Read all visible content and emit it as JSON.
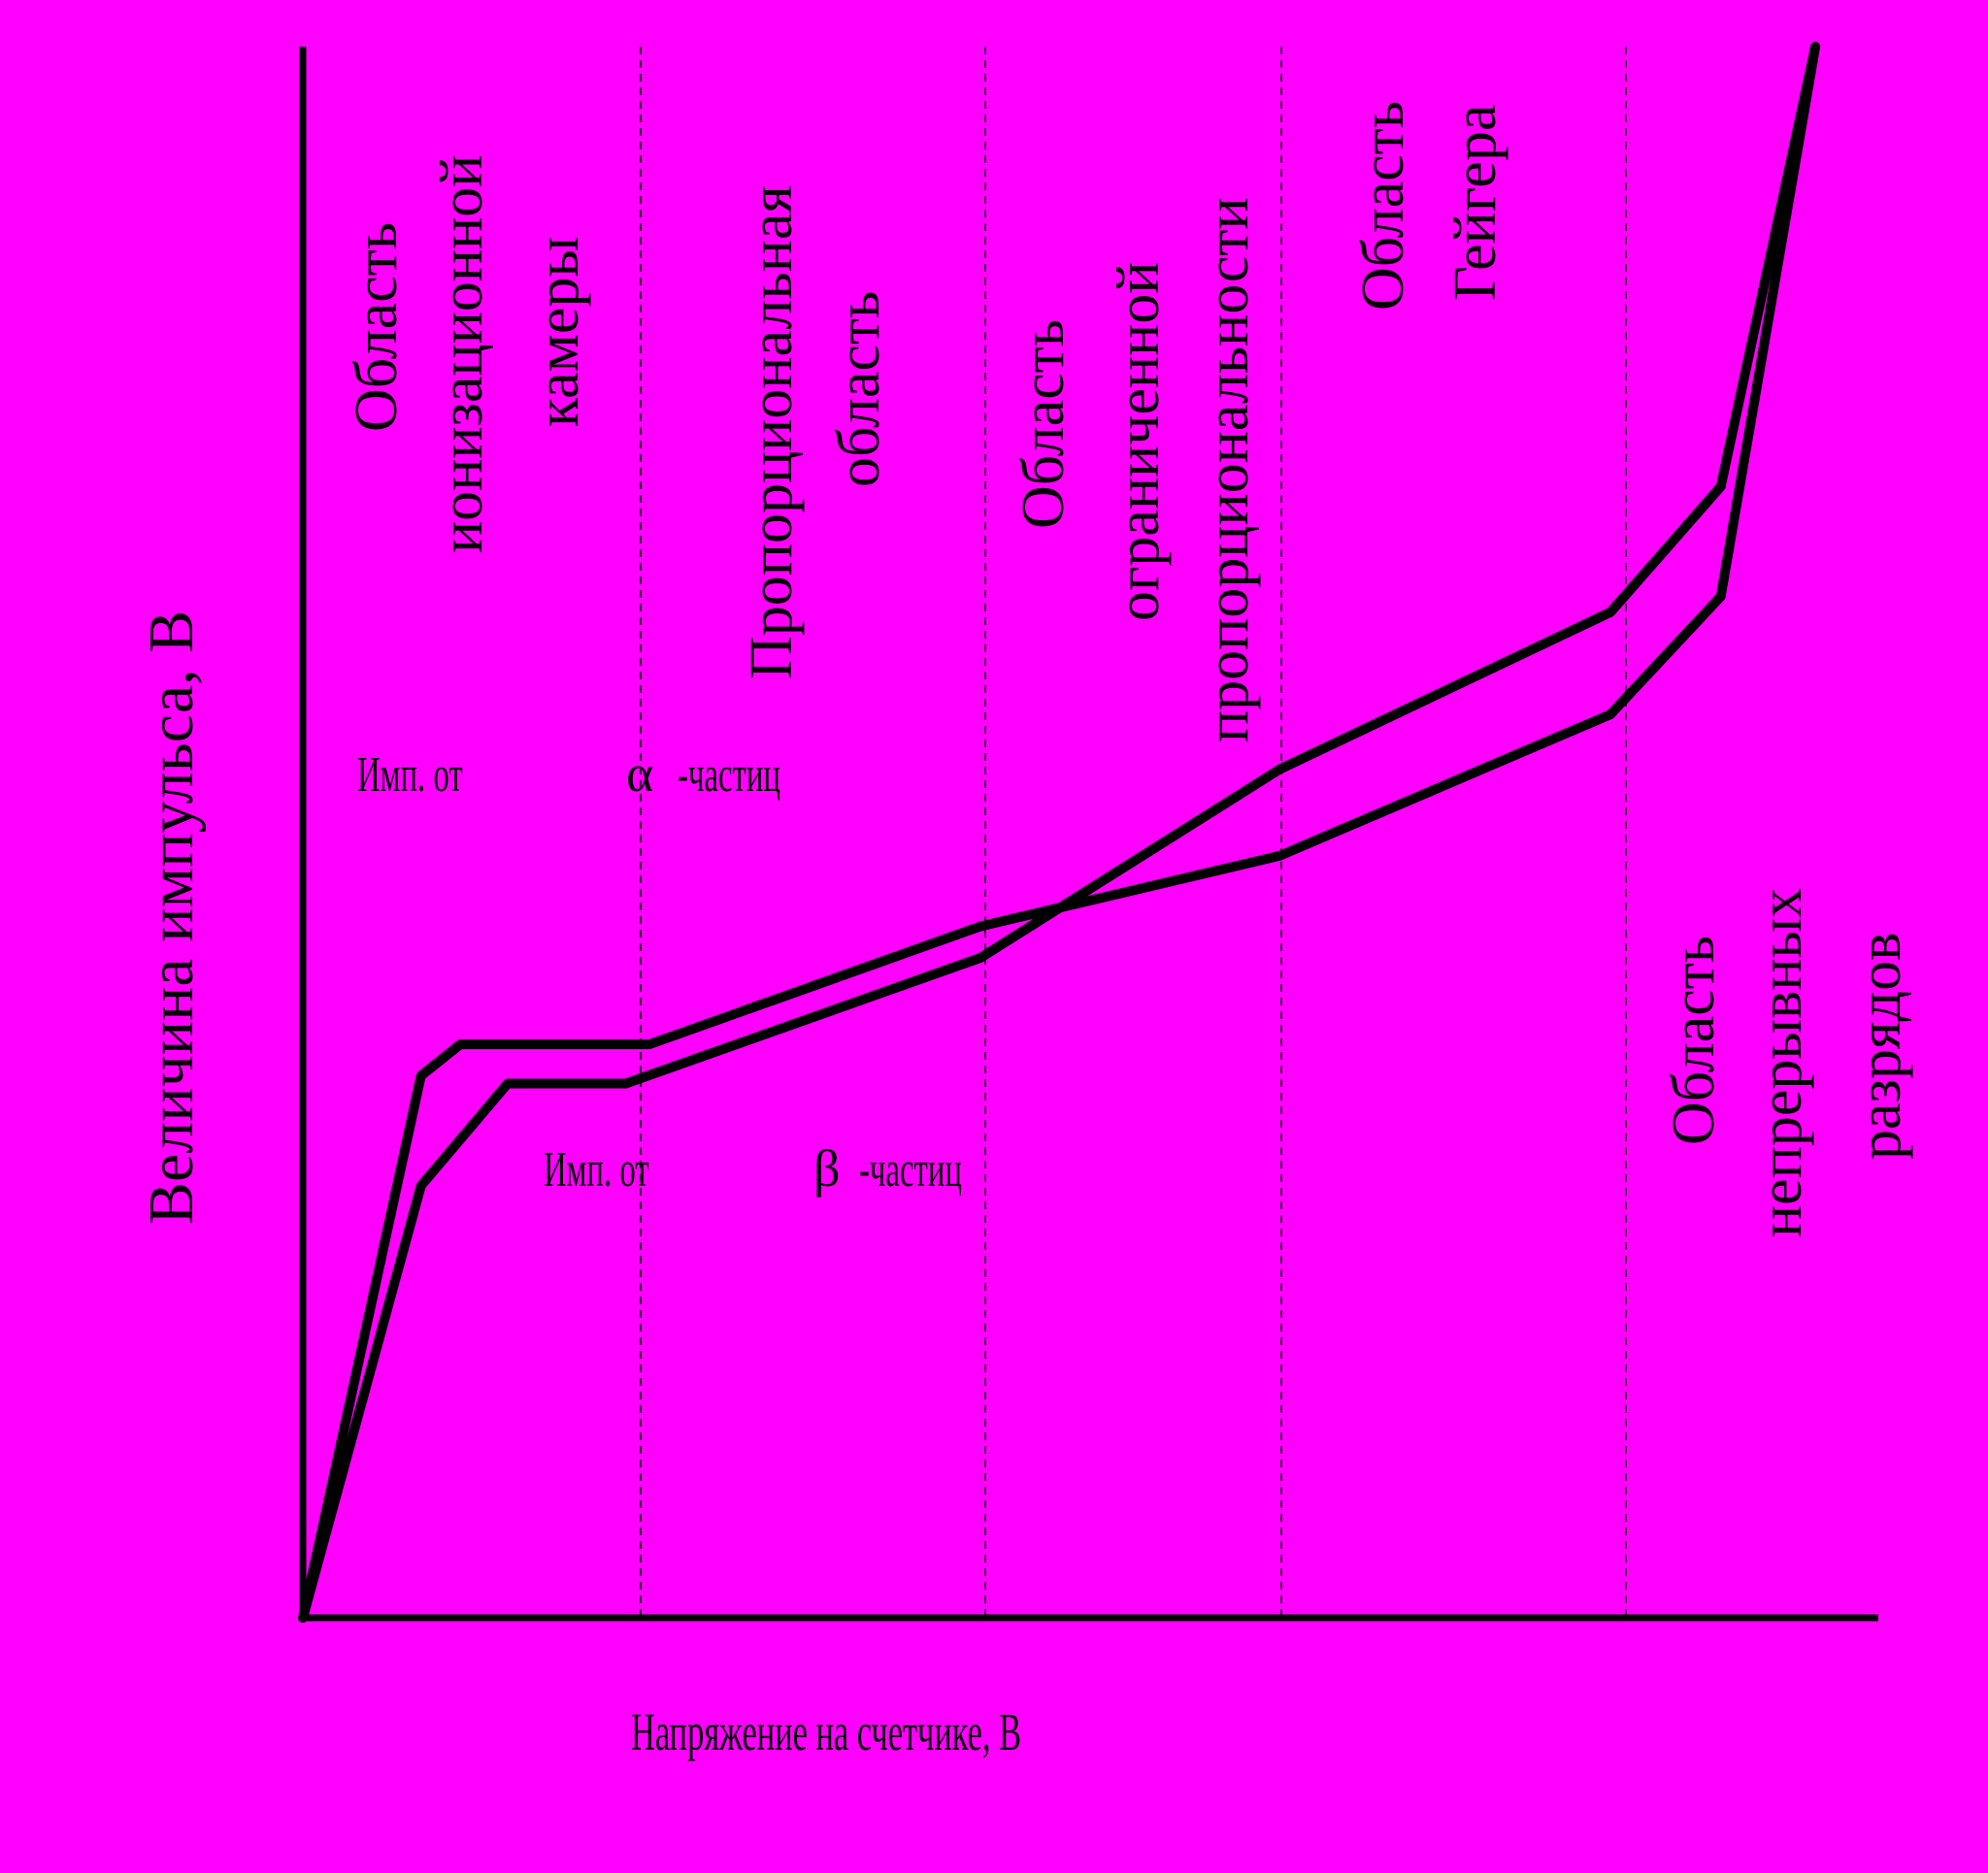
{
  "background_color": "#ff00ff",
  "foreground_color": "#000000",
  "chart_data": {
    "type": "line",
    "title": "",
    "xlabel": "Напряжение на счетчике, В",
    "ylabel": "Величина импульса, В",
    "grid": false,
    "x_ticks": false,
    "y_ticks": false,
    "regions": [
      {
        "lines": [
          "Область",
          "ионизационной",
          "камеры"
        ]
      },
      {
        "lines": [
          "Пропорциональная",
          "область"
        ]
      },
      {
        "lines": [
          "Область",
          "ограниченной",
          "пропорциональности"
        ]
      },
      {
        "lines": [
          "Область",
          "Гейгера"
        ]
      },
      {
        "lines": [
          "Область",
          "непрерывных",
          "разрядов"
        ]
      }
    ],
    "series": [
      {
        "label_prefix": "Имп. от",
        "symbol": "α",
        "label_suffix": "-частиц",
        "points": [
          [
            0,
            0
          ],
          [
            7.5,
            34.5
          ],
          [
            10,
            36.5
          ],
          [
            22,
            36.5
          ],
          [
            43,
            44
          ],
          [
            62,
            48.5
          ],
          [
            83,
            57.5
          ],
          [
            90,
            65
          ],
          [
            96,
            100
          ]
        ]
      },
      {
        "label_prefix": "Имп. от",
        "symbol": "β",
        "label_suffix": "-частиц",
        "points": [
          [
            0,
            0
          ],
          [
            7.5,
            27.5
          ],
          [
            13,
            34
          ],
          [
            20.5,
            34
          ],
          [
            43,
            42
          ],
          [
            62,
            54
          ],
          [
            83,
            64
          ],
          [
            90,
            72
          ],
          [
            96,
            100
          ]
        ]
      }
    ]
  }
}
